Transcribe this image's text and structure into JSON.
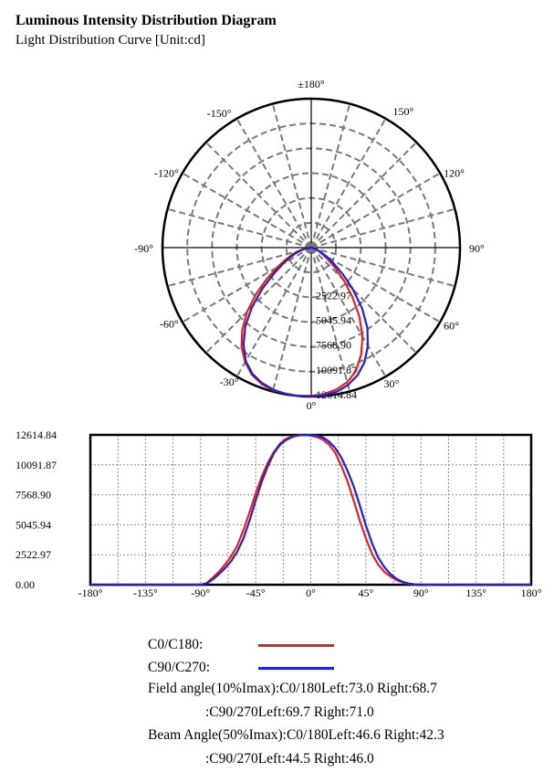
{
  "header": {
    "title": "Luminous Intensity Distribution Diagram",
    "subtitle": "Light Distribution Curve [Unit:cd]"
  },
  "chart_data": [
    {
      "type": "polar",
      "angle_labels": [
        "±180°",
        "150°",
        "120°",
        "90°",
        "60°",
        "30°",
        "0°",
        "-30°",
        "-60°",
        "-90°",
        "-120°",
        "-150°"
      ],
      "radial_tick_labels": [
        "2522.97",
        "5045.94",
        "7568.90",
        "10091.87",
        "12614.84"
      ],
      "rmax": 12614.84,
      "grid": true,
      "series": [
        {
          "name": "C0/C180",
          "color": "#e8201f",
          "angles": [
            -90,
            -85,
            -80,
            -75,
            -70,
            -65,
            -60,
            -55,
            -50,
            -45,
            -40,
            -35,
            -30,
            -25,
            -20,
            -15,
            -10,
            -5,
            0,
            5,
            10,
            15,
            20,
            25,
            30,
            35,
            40,
            45,
            50,
            55,
            60,
            65,
            70,
            75,
            80,
            85,
            90
          ],
          "values": [
            0,
            150,
            600,
            1100,
            1700,
            2400,
            3300,
            4600,
            6100,
            7700,
            9100,
            10300,
            11200,
            11900,
            12300,
            12500,
            12550,
            12614,
            12550,
            12450,
            12200,
            11800,
            11100,
            10000,
            8700,
            7100,
            5400,
            3900,
            2600,
            1700,
            1100,
            700,
            400,
            200,
            80,
            20,
            0
          ]
        },
        {
          "name": "C90/C270",
          "color": "#1f1fe0",
          "angles": [
            -90,
            -85,
            -80,
            -75,
            -70,
            -65,
            -60,
            -55,
            -50,
            -45,
            -40,
            -35,
            -30,
            -25,
            -20,
            -15,
            -10,
            -5,
            0,
            5,
            10,
            15,
            20,
            25,
            30,
            35,
            40,
            45,
            50,
            55,
            60,
            65,
            70,
            75,
            80,
            85,
            90
          ],
          "values": [
            0,
            100,
            450,
            900,
            1400,
            2000,
            2800,
            3900,
            5400,
            7100,
            8700,
            10000,
            11100,
            11800,
            12200,
            12450,
            12600,
            12614,
            12600,
            12550,
            12400,
            12050,
            11500,
            10700,
            9600,
            8300,
            6700,
            5000,
            3500,
            2300,
            1500,
            900,
            500,
            250,
            100,
            30,
            0
          ]
        }
      ]
    },
    {
      "type": "line",
      "x_tick_labels": [
        "-180°",
        "-135°",
        "-90°",
        "-45°",
        "0°",
        "45°",
        "90°",
        "135°",
        "180°"
      ],
      "y_tick_labels": [
        "12614.84",
        "10091.87",
        "7568.90",
        "5045.94",
        "2522.97",
        "0.00"
      ],
      "xlim": [
        -180,
        180
      ],
      "ylim": [
        0,
        12614.84
      ],
      "grid": true,
      "series_ref": "same as polar series"
    }
  ],
  "legend": {
    "c0_label": "C0/C180:",
    "c90_label": "C90/C270:"
  },
  "info": {
    "field_line1": "Field angle(10%Imax):C0/180Left:73.0 Right:68.7",
    "field_line2": ":C90/270Left:69.7 Right:71.0",
    "beam_line1": "Beam Angle(50%Imax):C0/180Left:46.6 Right:42.3",
    "beam_line2": ":C90/270Left:44.5 Right:46.0"
  }
}
